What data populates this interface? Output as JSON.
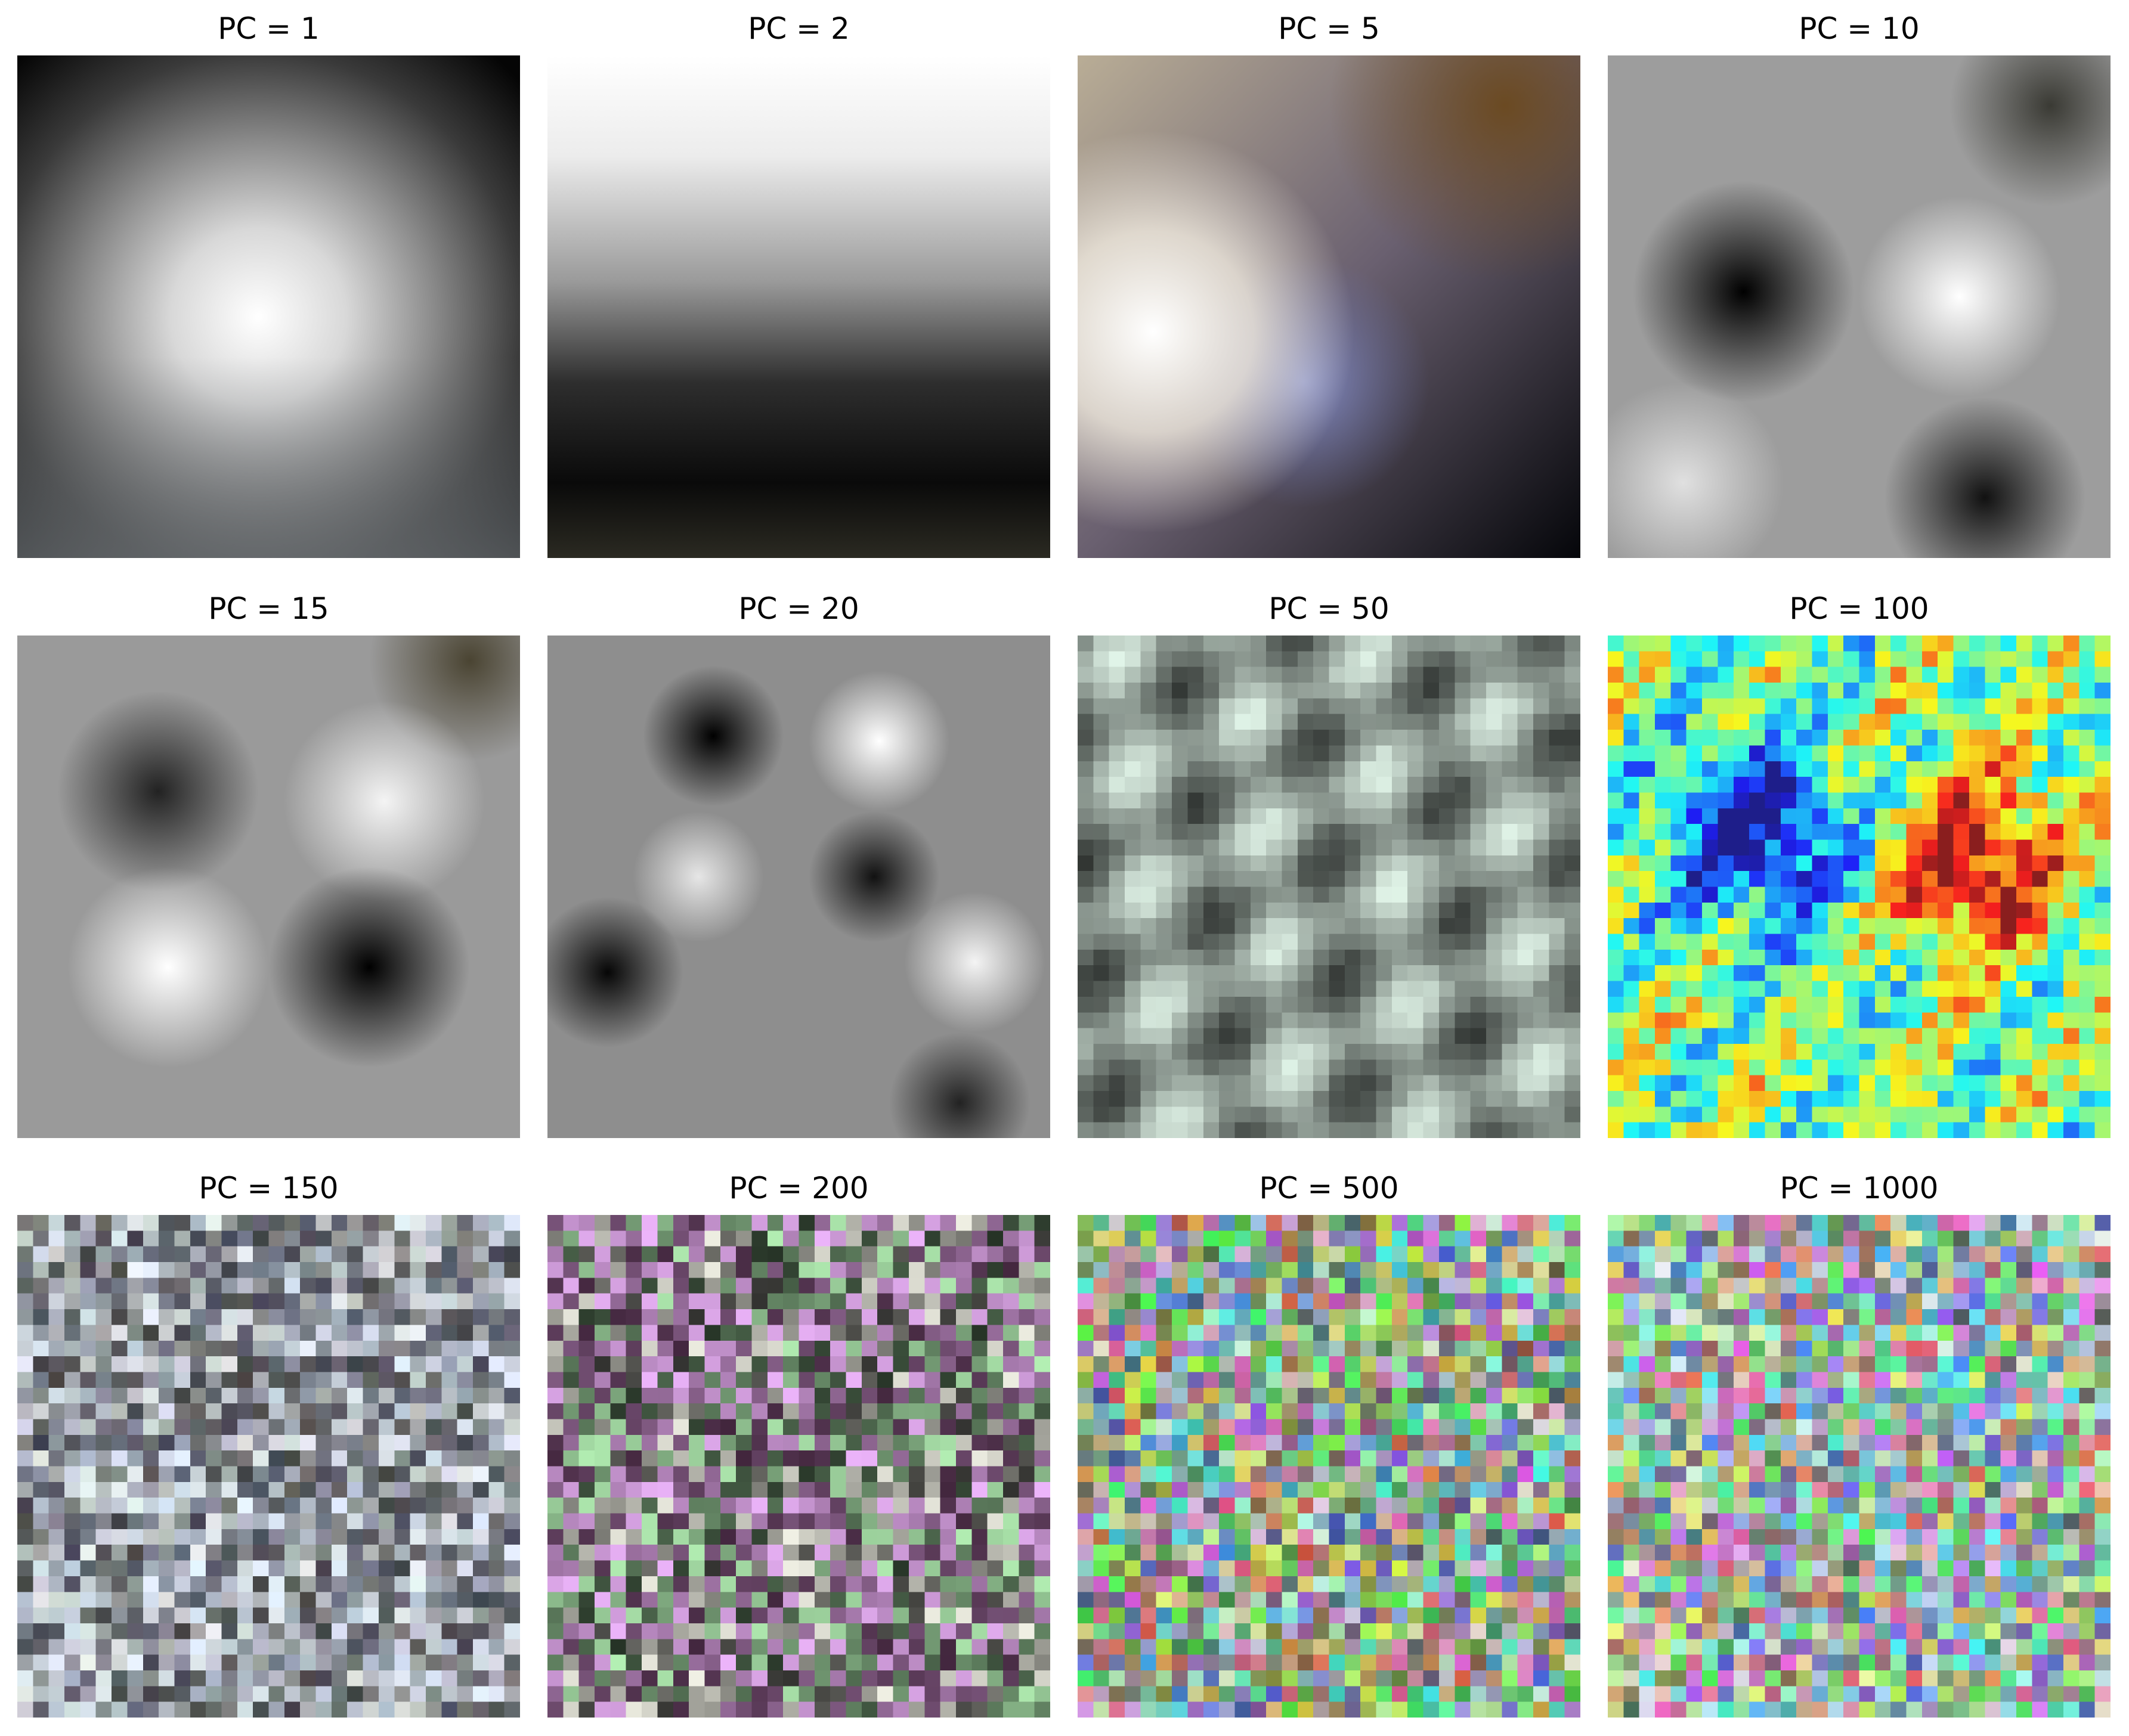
{
  "figure": {
    "panels": [
      {
        "title": "PC = 1",
        "pattern": "gray-radial-bright-center"
      },
      {
        "title": "PC = 2",
        "pattern": "gray-vertical-gradient-light-top-dark-bottom"
      },
      {
        "title": "PC = 5",
        "pattern": "color-bright-left-blue-middle-brown-top-right"
      },
      {
        "title": "PC = 10",
        "pattern": "gray-dark-left-bright-right-blobs"
      },
      {
        "title": "PC = 15",
        "pattern": "gray-four-quadrant-blobs"
      },
      {
        "title": "PC = 20",
        "pattern": "gray-six-alternating-blobs"
      },
      {
        "title": "PC = 50",
        "pattern": "color-diagonal-swirl-blobs"
      },
      {
        "title": "PC = 100",
        "pattern": "false-color-mottled-heatmap"
      },
      {
        "title": "PC = 150",
        "pattern": "color-fine-noise-muted"
      },
      {
        "title": "PC = 200",
        "pattern": "color-fine-noise-purple-green"
      },
      {
        "title": "PC = 500",
        "pattern": "color-pixel-noise"
      },
      {
        "title": "PC = 1000",
        "pattern": "color-pixel-noise-fine"
      }
    ]
  }
}
